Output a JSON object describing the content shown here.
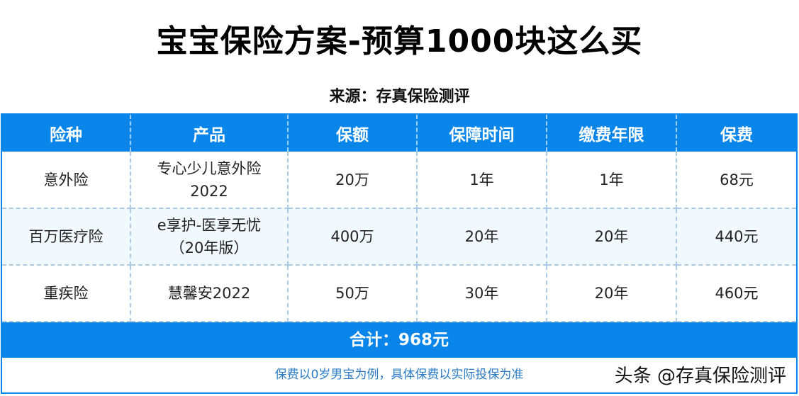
{
  "title": "宝宝保险方案-预算1000块这么买",
  "source": "来源：存真保险测评",
  "table": {
    "headers": [
      "险种",
      "产品",
      "保额",
      "保障时间",
      "缴费年限",
      "保费"
    ],
    "rows": [
      [
        "意外险",
        "专心少儿意外险\n2022",
        "20万",
        "1年",
        "1年",
        "68元"
      ],
      [
        "百万医疗险",
        "e享护-医享无忧\n（20年版）",
        "400万",
        "20年",
        "20年",
        "440元"
      ],
      [
        "重疾险",
        "慧馨安2022",
        "50万",
        "30年",
        "20年",
        "460元"
      ]
    ]
  },
  "total": "合计：968元",
  "note": "保费以0岁男宝为例，具体保费以实际投保为准",
  "watermark": "头条 @存真保险测评",
  "colors": {
    "accent": "#0a86ea",
    "note_text": "#2a7bc5"
  }
}
